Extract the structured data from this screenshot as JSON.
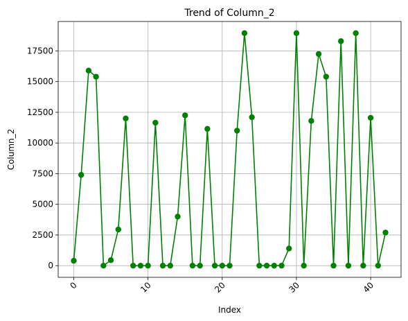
{
  "chart_data": {
    "type": "line",
    "title": "Trend of Column_2",
    "xlabel": "Index",
    "ylabel": "Column_2",
    "x_ticks": [
      "0",
      "10",
      "20",
      "30",
      "40"
    ],
    "y_ticks": [
      "0",
      "2500",
      "5000",
      "7500",
      "10000",
      "12500",
      "15000",
      "17500"
    ],
    "xlim": [
      -2.1,
      44.1
    ],
    "ylim": [
      -950,
      19900
    ],
    "grid": true,
    "line_color": "#008000",
    "marker": "circle",
    "series": [
      {
        "x": [
          0,
          1,
          2,
          3,
          4,
          5,
          6,
          7,
          8,
          9,
          10,
          11,
          12,
          13,
          14,
          15,
          16,
          17,
          18,
          19,
          20,
          21,
          22,
          23,
          24,
          25,
          26,
          27,
          28,
          29,
          30,
          31,
          32,
          33,
          34,
          35,
          36,
          37,
          38,
          39,
          40,
          41,
          42
        ],
        "values": [
          400,
          7400,
          15900,
          15400,
          0,
          450,
          2950,
          12000,
          0,
          0,
          0,
          11650,
          0,
          0,
          4000,
          12250,
          0,
          0,
          11150,
          0,
          0,
          0,
          11000,
          18950,
          12100,
          0,
          0,
          0,
          0,
          1400,
          18950,
          0,
          11800,
          17250,
          15400,
          0,
          18300,
          0,
          18950,
          0,
          12050,
          0,
          2700
        ]
      }
    ]
  }
}
